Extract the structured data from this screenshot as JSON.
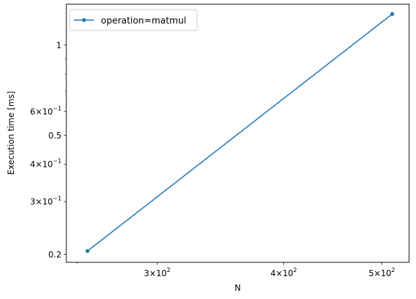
{
  "chart_data": {
    "type": "line",
    "xlabel": "N",
    "ylabel": "Execution time [ms]",
    "xscale": "log",
    "yscale": "log",
    "xlim": [
      244,
      532
    ],
    "ylim": [
      0.188,
      1.37
    ],
    "grid": false,
    "legend": {
      "position": "top-left",
      "entries": [
        "operation=matmul"
      ]
    },
    "series": [
      {
        "name": "operation=matmul",
        "color": "#1f77b4",
        "marker": "circle",
        "x": [
          256,
          512
        ],
        "y": [
          0.205,
          1.27
        ]
      }
    ],
    "x_ticks": [
      {
        "value": 300,
        "mantissa": "3",
        "base": "10",
        "exp": "2"
      },
      {
        "value": 400,
        "mantissa": "4",
        "base": "10",
        "exp": "2"
      },
      {
        "value": 500,
        "mantissa": "5",
        "base": "10",
        "exp": "2"
      }
    ],
    "x_minor_ticks": [
      250
    ],
    "y_ticks": [
      {
        "value": 0.2,
        "label": "0.2"
      },
      {
        "value": 0.3,
        "mantissa": "3",
        "base": "10",
        "exp": "−1"
      },
      {
        "value": 0.4,
        "mantissa": "4",
        "base": "10",
        "exp": "−1"
      },
      {
        "value": 0.5,
        "label": "0.5"
      },
      {
        "value": 0.6,
        "mantissa": "6",
        "base": "10",
        "exp": "−1"
      },
      {
        "value": 1.0,
        "label": "1"
      }
    ],
    "y_minor_ticks": [
      0.7,
      0.8,
      0.9
    ]
  }
}
